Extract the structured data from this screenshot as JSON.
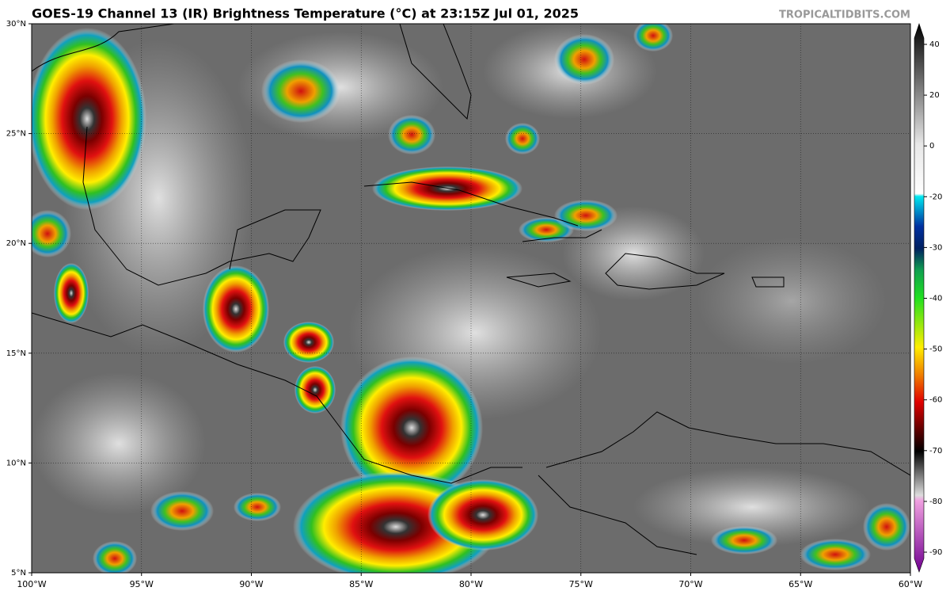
{
  "header": {
    "title": "GOES-19 Channel 13 (IR) Brightness Temperature (°C) at 23:15Z Jul 01, 2025",
    "credit": "TROPICALTIDBITS.COM"
  },
  "map": {
    "lon_range": [
      -100,
      -60
    ],
    "lat_range": [
      5,
      30
    ],
    "lon_ticks": [
      {
        "value": -100,
        "label": "100°W"
      },
      {
        "value": -95,
        "label": "95°W"
      },
      {
        "value": -90,
        "label": "90°W"
      },
      {
        "value": -85,
        "label": "85°W"
      },
      {
        "value": -80,
        "label": "80°W"
      },
      {
        "value": -75,
        "label": "75°W"
      },
      {
        "value": -70,
        "label": "70°W"
      },
      {
        "value": -65,
        "label": "65°W"
      },
      {
        "value": -60,
        "label": "60°W"
      }
    ],
    "lat_ticks": [
      {
        "value": 5,
        "label": "5°N"
      },
      {
        "value": 10,
        "label": "10°N"
      },
      {
        "value": 15,
        "label": "15°N"
      },
      {
        "value": 20,
        "label": "20°N"
      },
      {
        "value": 25,
        "label": "25°N"
      },
      {
        "value": 30,
        "label": "30°N"
      }
    ]
  },
  "colorbar": {
    "ticks": [
      40,
      20,
      0,
      -20,
      -30,
      -40,
      -50,
      -60,
      -70,
      -80,
      -90
    ]
  }
}
